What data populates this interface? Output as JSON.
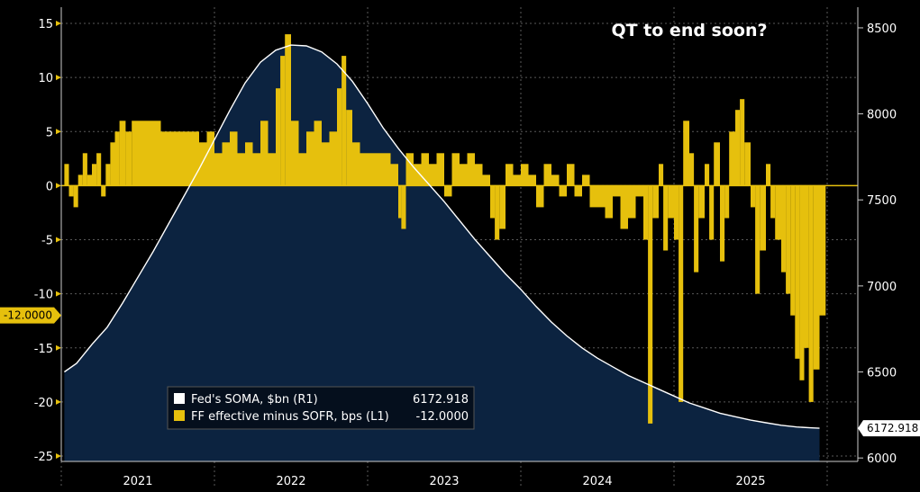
{
  "chart_data": {
    "type": "bar+area",
    "title": "QT to end soon?",
    "x_range": [
      2020.5,
      2025.7
    ],
    "x_ticks": [
      {
        "label": "2021",
        "value": 2021.0
      },
      {
        "label": "2022",
        "value": 2022.0
      },
      {
        "label": "2023",
        "value": 2023.0
      },
      {
        "label": "2024",
        "value": 2024.0
      },
      {
        "label": "2025",
        "value": 2025.0
      }
    ],
    "x_dividers": [
      2020.5,
      2021.5,
      2022.5,
      2023.5,
      2024.5,
      2025.5
    ],
    "left_axis": {
      "range": [
        -25.5,
        16.5
      ],
      "ticks": [
        15,
        10,
        5,
        0,
        -5,
        -10,
        -15,
        -20,
        -25
      ],
      "tick_labels": [
        "15",
        "10",
        "5",
        "0",
        "-5",
        "-10",
        "-15",
        "-20",
        "-25"
      ],
      "last_value_label": "-12.0000",
      "last_value": -12
    },
    "right_axis": {
      "range": [
        5980,
        8620
      ],
      "ticks": [
        8500,
        8000,
        7500,
        7000,
        6500,
        6000
      ],
      "tick_labels": [
        "8500",
        "8000",
        "7500",
        "7000",
        "6500",
        "6000"
      ],
      "last_value_label": "6172.918",
      "last_value": 6172.918
    },
    "legend": {
      "position": "bottom-left",
      "entries": [
        {
          "name": "Fed's SOMA, $bn (R1)",
          "value": "6172.918",
          "color": "#ffffff"
        },
        {
          "name": "FF effective minus SOFR, bps (L1)",
          "value": "-12.0000",
          "color": "#e6c00d"
        }
      ]
    },
    "series": [
      {
        "name": "Fed's SOMA, $bn (R1)",
        "axis": "right",
        "kind": "area",
        "line_color": "#ffffff",
        "fill_color": "#0c2340",
        "points": [
          [
            2020.52,
            6500
          ],
          [
            2020.6,
            6550
          ],
          [
            2020.7,
            6660
          ],
          [
            2020.8,
            6760
          ],
          [
            2020.9,
            6900
          ],
          [
            2021.0,
            7050
          ],
          [
            2021.1,
            7200
          ],
          [
            2021.2,
            7360
          ],
          [
            2021.3,
            7520
          ],
          [
            2021.4,
            7680
          ],
          [
            2021.5,
            7850
          ],
          [
            2021.6,
            8020
          ],
          [
            2021.7,
            8180
          ],
          [
            2021.8,
            8300
          ],
          [
            2021.9,
            8370
          ],
          [
            2022.0,
            8400
          ],
          [
            2022.1,
            8395
          ],
          [
            2022.2,
            8360
          ],
          [
            2022.3,
            8290
          ],
          [
            2022.4,
            8190
          ],
          [
            2022.5,
            8060
          ],
          [
            2022.6,
            7920
          ],
          [
            2022.7,
            7800
          ],
          [
            2022.8,
            7690
          ],
          [
            2022.9,
            7590
          ],
          [
            2023.0,
            7490
          ],
          [
            2023.1,
            7380
          ],
          [
            2023.2,
            7270
          ],
          [
            2023.3,
            7170
          ],
          [
            2023.4,
            7070
          ],
          [
            2023.5,
            6980
          ],
          [
            2023.6,
            6880
          ],
          [
            2023.7,
            6790
          ],
          [
            2023.8,
            6710
          ],
          [
            2023.9,
            6640
          ],
          [
            2024.0,
            6580
          ],
          [
            2024.1,
            6530
          ],
          [
            2024.2,
            6480
          ],
          [
            2024.3,
            6440
          ],
          [
            2024.4,
            6400
          ],
          [
            2024.5,
            6360
          ],
          [
            2024.6,
            6320
          ],
          [
            2024.7,
            6290
          ],
          [
            2024.8,
            6260
          ],
          [
            2024.9,
            6240
          ],
          [
            2025.0,
            6220
          ],
          [
            2025.1,
            6205
          ],
          [
            2025.2,
            6190
          ],
          [
            2025.3,
            6180
          ],
          [
            2025.4,
            6175
          ],
          [
            2025.45,
            6172.918
          ]
        ]
      },
      {
        "name": "FF effective minus SOFR, bps (L1)",
        "axis": "left",
        "kind": "bar",
        "color": "#e6c00d",
        "points": [
          [
            2020.52,
            2
          ],
          [
            2020.55,
            -1
          ],
          [
            2020.58,
            -2
          ],
          [
            2020.61,
            1
          ],
          [
            2020.64,
            3
          ],
          [
            2020.67,
            1
          ],
          [
            2020.7,
            2
          ],
          [
            2020.73,
            3
          ],
          [
            2020.76,
            -1
          ],
          [
            2020.79,
            2
          ],
          [
            2020.82,
            4
          ],
          [
            2020.85,
            5
          ],
          [
            2020.88,
            6
          ],
          [
            2020.92,
            5
          ],
          [
            2020.96,
            6
          ],
          [
            2021.0,
            6
          ],
          [
            2021.05,
            6
          ],
          [
            2021.1,
            6
          ],
          [
            2021.15,
            5
          ],
          [
            2021.2,
            5
          ],
          [
            2021.25,
            5
          ],
          [
            2021.3,
            5
          ],
          [
            2021.35,
            5
          ],
          [
            2021.4,
            4
          ],
          [
            2021.45,
            5
          ],
          [
            2021.5,
            3
          ],
          [
            2021.55,
            4
          ],
          [
            2021.6,
            5
          ],
          [
            2021.65,
            3
          ],
          [
            2021.7,
            4
          ],
          [
            2021.75,
            3
          ],
          [
            2021.8,
            6
          ],
          [
            2021.85,
            3
          ],
          [
            2021.9,
            9
          ],
          [
            2021.93,
            12
          ],
          [
            2021.96,
            14
          ],
          [
            2022.0,
            6
          ],
          [
            2022.05,
            3
          ],
          [
            2022.1,
            5
          ],
          [
            2022.15,
            6
          ],
          [
            2022.2,
            4
          ],
          [
            2022.25,
            5
          ],
          [
            2022.3,
            9
          ],
          [
            2022.33,
            12
          ],
          [
            2022.36,
            7
          ],
          [
            2022.4,
            4
          ],
          [
            2022.45,
            3
          ],
          [
            2022.5,
            3
          ],
          [
            2022.55,
            3
          ],
          [
            2022.6,
            3
          ],
          [
            2022.65,
            2
          ],
          [
            2022.7,
            -3
          ],
          [
            2022.72,
            -4
          ],
          [
            2022.75,
            3
          ],
          [
            2022.8,
            2
          ],
          [
            2022.85,
            3
          ],
          [
            2022.9,
            2
          ],
          [
            2022.95,
            3
          ],
          [
            2023.0,
            -1
          ],
          [
            2023.05,
            3
          ],
          [
            2023.1,
            2
          ],
          [
            2023.15,
            3
          ],
          [
            2023.2,
            2
          ],
          [
            2023.25,
            1
          ],
          [
            2023.3,
            -3
          ],
          [
            2023.33,
            -5
          ],
          [
            2023.36,
            -4
          ],
          [
            2023.4,
            2
          ],
          [
            2023.45,
            1
          ],
          [
            2023.5,
            2
          ],
          [
            2023.55,
            1
          ],
          [
            2023.6,
            -2
          ],
          [
            2023.65,
            2
          ],
          [
            2023.7,
            1
          ],
          [
            2023.75,
            -1
          ],
          [
            2023.8,
            2
          ],
          [
            2023.85,
            -1
          ],
          [
            2023.9,
            1
          ],
          [
            2023.95,
            -2
          ],
          [
            2024.0,
            -2
          ],
          [
            2024.05,
            -3
          ],
          [
            2024.1,
            -1
          ],
          [
            2024.15,
            -4
          ],
          [
            2024.2,
            -3
          ],
          [
            2024.25,
            -1
          ],
          [
            2024.3,
            -5
          ],
          [
            2024.33,
            -22
          ],
          [
            2024.36,
            -3
          ],
          [
            2024.4,
            2
          ],
          [
            2024.43,
            -6
          ],
          [
            2024.46,
            -3
          ],
          [
            2024.5,
            -5
          ],
          [
            2024.53,
            -20
          ],
          [
            2024.56,
            6
          ],
          [
            2024.6,
            3
          ],
          [
            2024.63,
            -8
          ],
          [
            2024.66,
            -3
          ],
          [
            2024.7,
            2
          ],
          [
            2024.73,
            -5
          ],
          [
            2024.76,
            4
          ],
          [
            2024.8,
            -7
          ],
          [
            2024.83,
            -3
          ],
          [
            2024.86,
            5
          ],
          [
            2024.9,
            7
          ],
          [
            2024.93,
            8
          ],
          [
            2024.96,
            4
          ],
          [
            2025.0,
            -2
          ],
          [
            2025.03,
            -10
          ],
          [
            2025.06,
            -6
          ],
          [
            2025.1,
            2
          ],
          [
            2025.13,
            -3
          ],
          [
            2025.16,
            -5
          ],
          [
            2025.2,
            -8
          ],
          [
            2025.23,
            -10
          ],
          [
            2025.26,
            -12
          ],
          [
            2025.29,
            -16
          ],
          [
            2025.32,
            -18
          ],
          [
            2025.35,
            -15
          ],
          [
            2025.38,
            -20
          ],
          [
            2025.41,
            -17
          ],
          [
            2025.45,
            -12
          ]
        ]
      }
    ]
  }
}
